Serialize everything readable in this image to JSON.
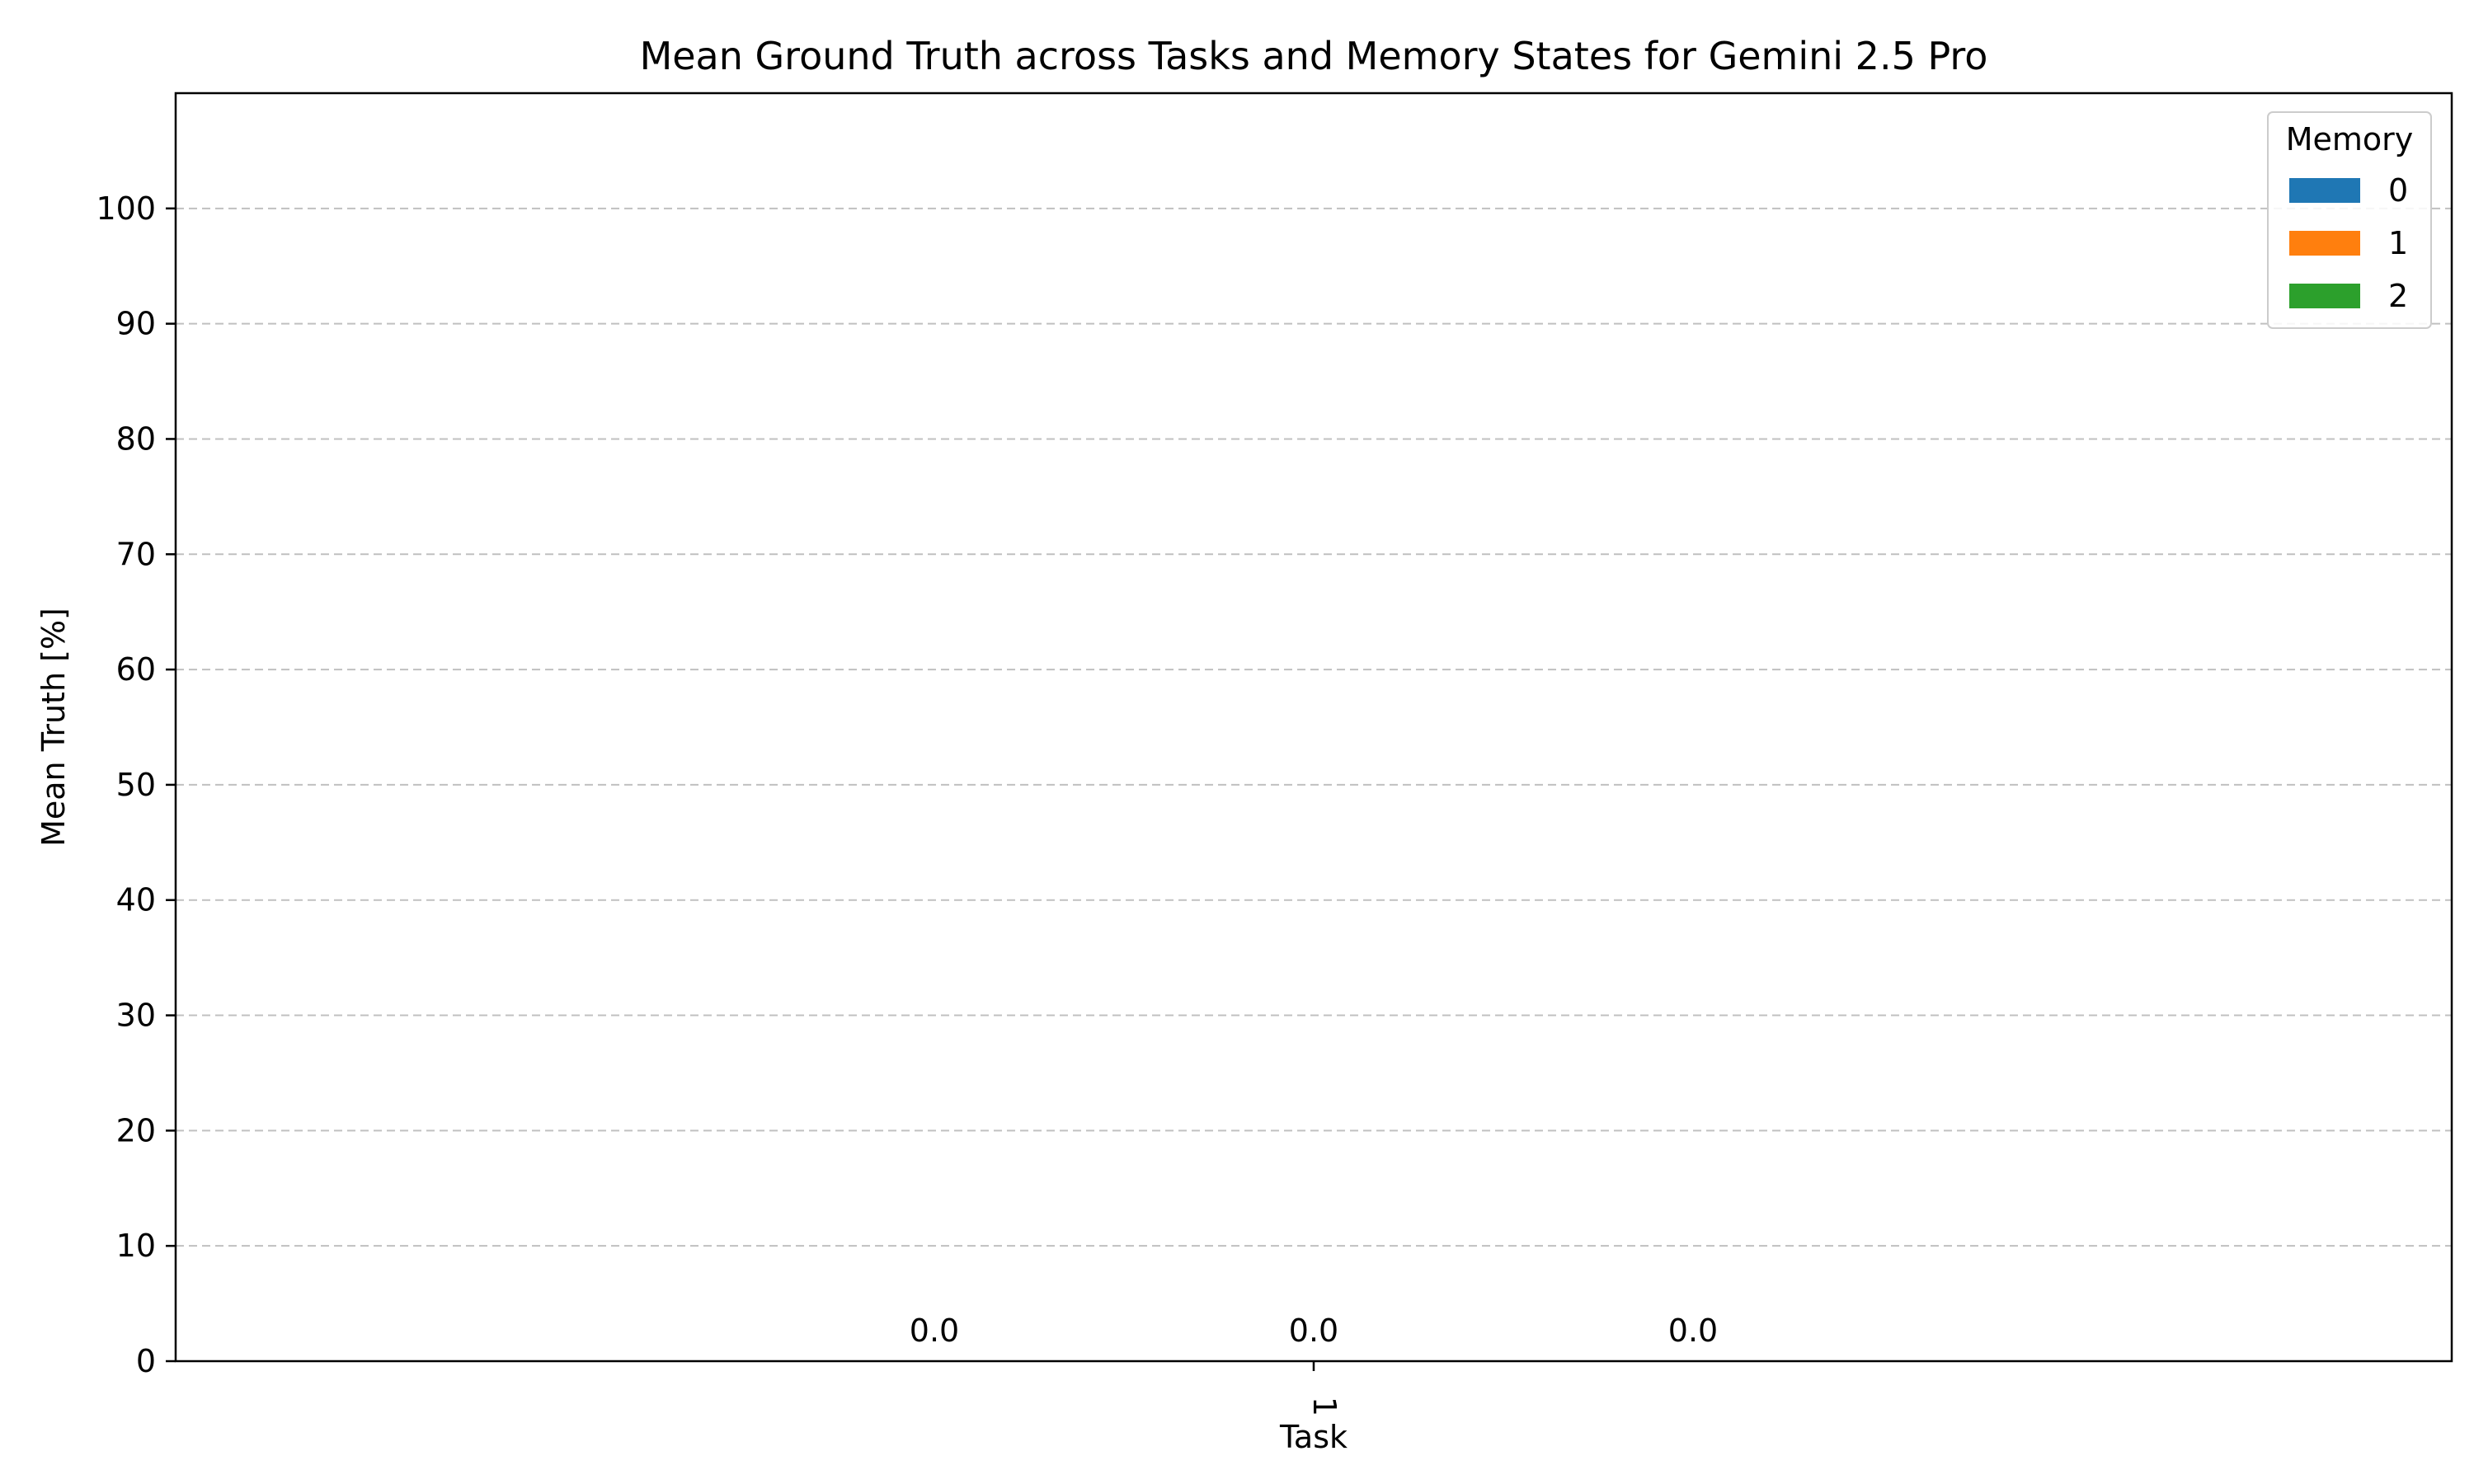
{
  "chart_data": {
    "type": "bar",
    "title": "Mean Ground Truth across Tasks and Memory States for Gemini 2.5 Pro",
    "xlabel": "Task",
    "ylabel": "Mean Truth [%]",
    "categories": [
      "1"
    ],
    "series": [
      {
        "name": "0",
        "values": [
          0.0
        ],
        "labels": [
          "0.0"
        ],
        "color": "#1f77b4"
      },
      {
        "name": "1",
        "values": [
          0.0
        ],
        "labels": [
          "0.0"
        ],
        "color": "#ff7f0e"
      },
      {
        "name": "2",
        "values": [
          0.0
        ],
        "labels": [
          "0.0"
        ],
        "color": "#2ca02c"
      }
    ],
    "ylim": [
      0,
      110
    ],
    "yticks": [
      "0",
      "10",
      "20",
      "30",
      "40",
      "50",
      "60",
      "70",
      "80",
      "90",
      "100"
    ],
    "grid": "y-dashed",
    "legend": {
      "title": "Memory",
      "position": "top-right"
    }
  }
}
